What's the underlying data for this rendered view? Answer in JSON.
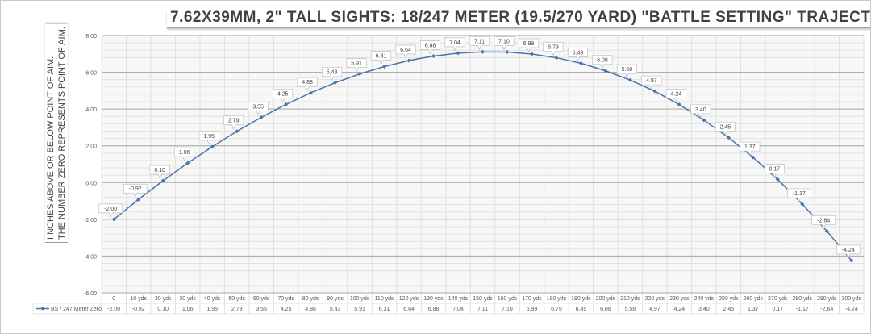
{
  "chart_data": {
    "type": "line",
    "title": "7.62X39MM, 2\" TALL SIGHTS:  18/247 METER (19.5/270 YARD) \"BATTLE SETTING\" TRAJECTORY",
    "ylabel_lines": [
      "IINCHES ABOVE OR BELOW POINT OF AIM.",
      "THE NUMBER ZERO REPRESENTS POINT OF AIM."
    ],
    "xlabel": "",
    "ylim": [
      -6,
      8
    ],
    "yticks": [
      "8.00",
      "6.00",
      "4.00",
      "2.00",
      "0.00",
      "-2.00",
      "-4.00",
      "-6.00"
    ],
    "grid": true,
    "legend": "data-table",
    "categories": [
      "0",
      "10 yds",
      "20 yds",
      "30 yds",
      "40 yds",
      "50 yds",
      "60 yds",
      "70 yds",
      "80 yds",
      "90 yds",
      "100 yds",
      "110 yds",
      "120 yds",
      "130 yds",
      "140 yds",
      "150 yds",
      "160 yds",
      "170 yds",
      "180 yds",
      "190 yds",
      "200 yds",
      "210 yds",
      "220 yds",
      "230 yds",
      "240 yds",
      "250 yds",
      "260 yds",
      "270 yds",
      "280 yds",
      "290 yds",
      "300 yds"
    ],
    "series": [
      {
        "name": "BS / 247 Meter Zero",
        "color": "#4a74a8",
        "values": [
          -2.0,
          -0.92,
          0.1,
          1.06,
          1.95,
          2.79,
          3.55,
          4.25,
          4.88,
          5.43,
          5.91,
          6.31,
          6.64,
          6.88,
          7.04,
          7.11,
          7.1,
          6.99,
          6.79,
          6.49,
          6.08,
          5.58,
          4.97,
          4.24,
          3.4,
          2.45,
          1.37,
          0.17,
          -1.17,
          -2.64,
          -4.24
        ]
      }
    ]
  }
}
